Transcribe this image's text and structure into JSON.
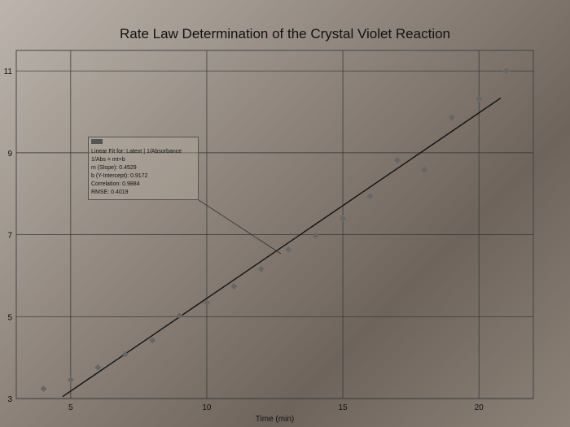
{
  "chart_data": {
    "type": "scatter",
    "title": "Rate Law Determination of the Crystal Violet Reaction",
    "xlabel": "Time (min)",
    "ylabel": "",
    "xlim": [
      3,
      22
    ],
    "ylim": [
      3,
      11.5
    ],
    "xticks": [
      5,
      10,
      15,
      20
    ],
    "yticks": [
      3,
      5,
      7,
      9,
      11
    ],
    "grid": true,
    "series": [
      {
        "x": [
          4,
          5,
          6,
          7,
          8,
          9,
          10,
          11,
          12,
          13,
          14,
          15,
          16,
          17,
          18,
          19,
          20,
          21
        ],
        "y": [
          3.24,
          3.46,
          3.76,
          4.08,
          4.42,
          5.02,
          5.34,
          5.74,
          6.16,
          6.64,
          6.98,
          7.4,
          7.94,
          8.82,
          8.58,
          9.86,
          10.32,
          11.0
        ],
        "color": "#666666"
      }
    ],
    "fit": {
      "slope": 0.4529,
      "intercept": 0.9172,
      "x_range": [
        4.7,
        20.8
      ],
      "color": "#111111"
    },
    "annotation": {
      "lines": [
        "Linear Fit for: Latest | 1/Absorbance",
        "1/Abs = mt+b",
        "m (Slope): 0.4529",
        "b (Y-Intercept): 0.9172",
        "Correlation: 0.9884",
        "RMSE: 0.4019"
      ]
    }
  }
}
